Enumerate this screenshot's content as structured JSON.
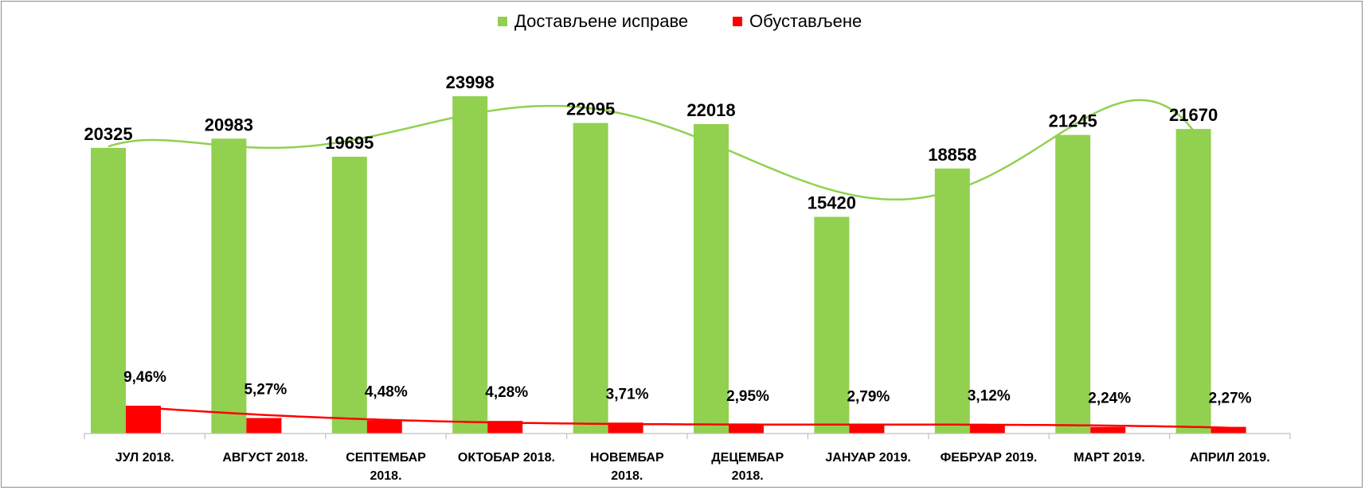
{
  "chart_data": {
    "type": "bar",
    "categories": [
      [
        "ЈУЛ 2018."
      ],
      [
        "АВГУСТ 2018."
      ],
      [
        "СЕПТЕМБАР",
        "2018."
      ],
      [
        "ОКТОБАР 2018."
      ],
      [
        "НОВЕМБАР",
        "2018."
      ],
      [
        "ДЕЦЕМБАР",
        "2018."
      ],
      [
        "ЈАНУАР 2019."
      ],
      [
        "ФЕБРУАР 2019."
      ],
      [
        "МАРТ 2019."
      ],
      [
        "АПРИЛ 2019."
      ]
    ],
    "series": [
      {
        "name": "Достављене исправе",
        "color": "#92d050",
        "values": [
          20325,
          20983,
          19695,
          23998,
          22095,
          22018,
          15420,
          18858,
          21245,
          21670
        ],
        "labels": [
          "20325",
          "20983",
          "19695",
          "23998",
          "22095",
          "22018",
          "15420",
          "18858",
          "21245",
          "21670"
        ]
      },
      {
        "name": "Обустављене",
        "color": "#ff0000",
        "values": [
          9.46,
          5.27,
          4.48,
          4.28,
          3.71,
          2.95,
          2.79,
          3.12,
          2.24,
          2.27
        ],
        "labels": [
          "9,46%",
          "5,27%",
          "4,48%",
          "4,28%",
          "3,71%",
          "2,95%",
          "2,79%",
          "3,12%",
          "2,24%",
          "2,27%"
        ],
        "unit": "%"
      }
    ],
    "trendlines": [
      {
        "series": "Достављене исправе",
        "color": "#92d050",
        "style": "smooth polynomial"
      },
      {
        "series": "Обустављене",
        "color": "#ff0000",
        "style": "smooth decreasing"
      }
    ],
    "legend_position": "top",
    "grid": false
  }
}
